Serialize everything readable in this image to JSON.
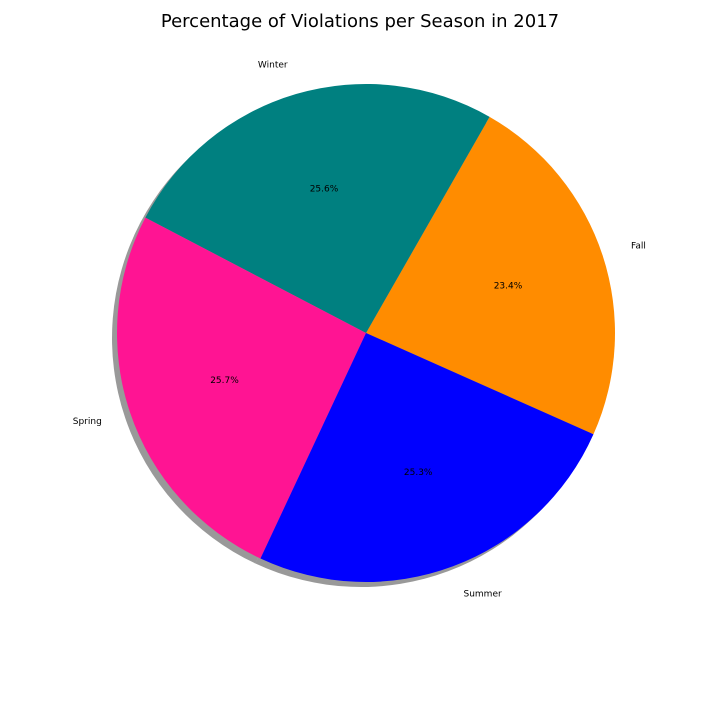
{
  "chart_data": {
    "type": "pie",
    "title": "Percentage of Violations per Season in 2017",
    "categories": [
      "Fall",
      "Winter",
      "Spring",
      "Summer"
    ],
    "values": [
      23.4,
      25.6,
      25.7,
      25.3
    ],
    "percent_labels": [
      "23.4%",
      "25.6%",
      "25.7%",
      "25.3%"
    ],
    "colors": [
      "#ff8c00",
      "#008080",
      "#ff1493",
      "#0000ff"
    ],
    "start_angle_deg": -24,
    "direction": "counterclockwise",
    "shadow": true,
    "legend": false
  }
}
